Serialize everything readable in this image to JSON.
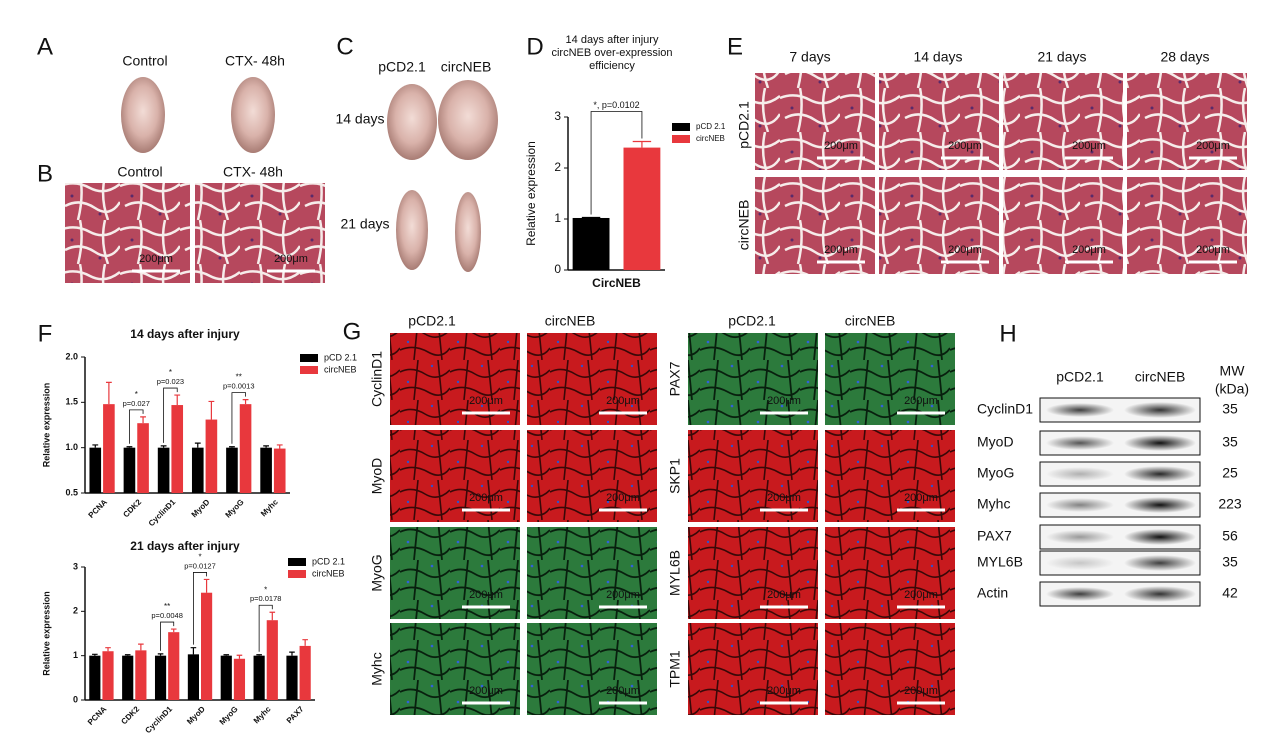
{
  "panels": {
    "A": {
      "letter": "A",
      "columns": [
        "Control",
        "CTX- 48h"
      ]
    },
    "B": {
      "letter": "B",
      "columns": [
        "Control",
        "CTX- 48h"
      ]
    },
    "C": {
      "letter": "C",
      "columns": [
        "pCD2.1",
        "circNEB"
      ],
      "rows": [
        "14 days",
        "21 days"
      ]
    },
    "D": {
      "letter": "D"
    },
    "E": {
      "letter": "E",
      "columns": [
        "7 days",
        "14 days",
        "21 days",
        "28 days"
      ],
      "rows": [
        "pCD2.1",
        "circNEB"
      ]
    },
    "F": {
      "letter": "F"
    },
    "G": {
      "letter": "G",
      "columns": [
        "pCD2.1",
        "circNEB",
        "pCD2.1",
        "circNEB"
      ],
      "left_rows": [
        "CyclinD1",
        "MyoD",
        "MyoG",
        "Myhc"
      ],
      "right_rows": [
        "PAX7",
        "SKP1",
        "MYL6B",
        "TPM1"
      ]
    },
    "H": {
      "letter": "H",
      "columns": [
        "pCD2.1",
        "circNEB"
      ],
      "mw_header": [
        "MW",
        "(kDa)"
      ],
      "rows": [
        {
          "label": "CyclinD1",
          "mw": 35
        },
        {
          "label": "MyoD",
          "mw": 35
        },
        {
          "label": "MyoG",
          "mw": 25
        },
        {
          "label": "Myhc",
          "mw": 223
        },
        {
          "label": "PAX7",
          "mw": 56
        },
        {
          "label": "MYL6B",
          "mw": 35
        },
        {
          "label": "Actin",
          "mw": 42
        }
      ]
    }
  },
  "scale_bar": "200μm",
  "chart_data": [
    {
      "type": "bar",
      "title": [
        "14 days after injury",
        "circNEB over-expression",
        "efficiency"
      ],
      "y_label": "Relative expression",
      "categories": [
        "CircNEB"
      ],
      "series": [
        {
          "name": "pCD 2.1",
          "color": "#000000",
          "values": [
            1.02
          ],
          "errors": [
            0.01
          ]
        },
        {
          "name": "circNEB",
          "color": "#e8383d",
          "values": [
            2.4
          ],
          "errors": [
            0.12
          ]
        }
      ],
      "ylim": [
        0,
        3
      ],
      "yticks": [
        0,
        1,
        2,
        3
      ],
      "annotations": [
        {
          "category": "CircNEB",
          "label": "*, p=0.0102"
        }
      ]
    },
    {
      "type": "bar",
      "title": "14 days after injury",
      "y_label": "Relative expression",
      "categories": [
        "PCNA",
        "CDK2",
        "CyclinD1",
        "MyoD",
        "MyoG",
        "Myhc"
      ],
      "series": [
        {
          "name": "pCD 2.1",
          "color": "#000000",
          "values": [
            1.0,
            1.0,
            1.0,
            1.0,
            1.0,
            1.0
          ],
          "errors": [
            0.03,
            0.01,
            0.02,
            0.05,
            0.01,
            0.02
          ]
        },
        {
          "name": "circNEB",
          "color": "#e8383d",
          "values": [
            1.48,
            1.27,
            1.47,
            1.31,
            1.48,
            0.99
          ],
          "errors": [
            0.24,
            0.07,
            0.11,
            0.2,
            0.05,
            0.04
          ]
        }
      ],
      "ylim": [
        0.5,
        2.0
      ],
      "yticks": [
        0.5,
        {
          "value": 1.0,
          "label": "1.0"
        },
        1.5,
        {
          "value": 2.0,
          "label": "2.0"
        }
      ],
      "annotations": [
        {
          "category": "CDK2",
          "stars": "*",
          "label": "p=0.027"
        },
        {
          "category": "CyclinD1",
          "stars": "*",
          "label": "p=0.023"
        },
        {
          "category": "MyoG",
          "stars": "**",
          "label": "p=0.0013"
        }
      ]
    },
    {
      "type": "bar",
      "title": "21 days after injury",
      "y_label": "Relative expression",
      "categories": [
        "PCNA",
        "CDK2",
        "CyclinD1",
        "MyoD",
        "MyoG",
        "Myhc",
        "PAX7"
      ],
      "series": [
        {
          "name": "pCD 2.1",
          "color": "#000000",
          "values": [
            1.0,
            1.0,
            1.0,
            1.03,
            1.0,
            1.0,
            1.0
          ],
          "errors": [
            0.03,
            0.02,
            0.04,
            0.15,
            0.02,
            0.02,
            0.08
          ]
        },
        {
          "name": "circNEB",
          "color": "#e8383d",
          "values": [
            1.1,
            1.12,
            1.53,
            2.42,
            0.93,
            1.8,
            1.22
          ],
          "errors": [
            0.08,
            0.14,
            0.07,
            0.3,
            0.08,
            0.18,
            0.14
          ]
        }
      ],
      "ylim": [
        0,
        3
      ],
      "yticks": [
        0,
        1,
        2,
        3
      ],
      "annotations": [
        {
          "category": "CyclinD1",
          "stars": "**",
          "label": "p=0.0048"
        },
        {
          "category": "MyoD",
          "stars": "*",
          "label": "p=0.0127"
        },
        {
          "category": "Myhc",
          "stars": "*",
          "label": "p=0.0178"
        }
      ]
    }
  ]
}
